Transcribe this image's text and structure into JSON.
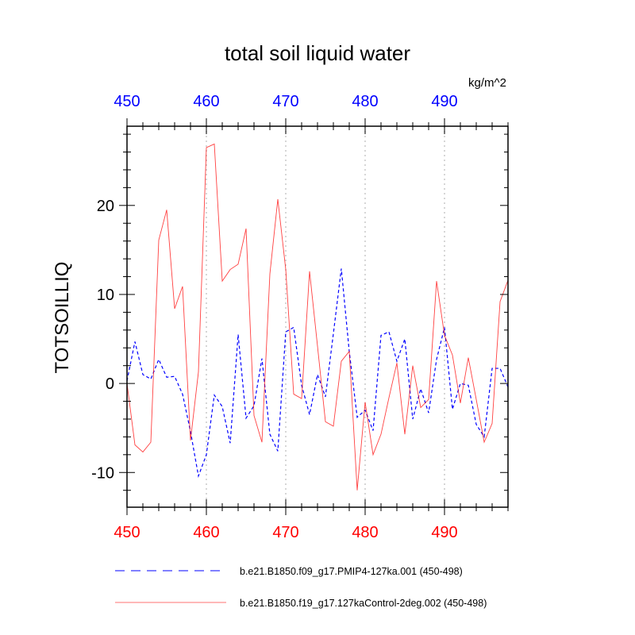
{
  "chart_data": {
    "type": "line",
    "title": "total soil liquid water",
    "ylabel": "TOTSOILLIQ",
    "units": "kg/m^2",
    "xlim": [
      450,
      498
    ],
    "ylim": [
      -13.9,
      28.9
    ],
    "x_ticks": [
      450,
      460,
      470,
      480,
      490
    ],
    "y_ticks": [
      -10,
      0,
      10,
      20
    ],
    "grid": "vertical dotted at major x ticks",
    "top_axis_color": "#0000ff",
    "bottom_axis_color": "#ff0000",
    "legend_placement": "bottom",
    "x": [
      450,
      451,
      452,
      453,
      454,
      455,
      456,
      457,
      458,
      459,
      460,
      461,
      462,
      463,
      464,
      465,
      466,
      467,
      468,
      469,
      470,
      471,
      472,
      473,
      474,
      475,
      476,
      477,
      478,
      479,
      480,
      481,
      482,
      483,
      484,
      485,
      486,
      487,
      488,
      489,
      490,
      491,
      492,
      493,
      494,
      495,
      496,
      497,
      498
    ],
    "series": [
      {
        "name": "b.e21.B1850.f09_g17.PMIP4-127ka.001 (450-498)",
        "color": "#0000ff",
        "dash": "dashed",
        "values": [
          0.3,
          4.7,
          1.0,
          0.5,
          2.7,
          0.7,
          0.8,
          -1.2,
          -5.4,
          -10.4,
          -8.0,
          -1.3,
          -2.6,
          -6.7,
          5.5,
          -3.9,
          -2.5,
          2.8,
          -5.7,
          -7.6,
          5.8,
          6.3,
          -0.2,
          -3.5,
          1.0,
          -1.5,
          5.6,
          12.9,
          3.6,
          -3.8,
          -3.0,
          -5.3,
          5.4,
          5.8,
          2.5,
          5.0,
          -4.0,
          -0.6,
          -3.3,
          2.7,
          6.3,
          -2.9,
          0.0,
          -0.2,
          -4.6,
          -6.0,
          1.7,
          1.7,
          -0.4
        ]
      },
      {
        "name": "b.e21.B1850.f19_g17.127kaControl-2deg.002 (450-498)",
        "color": "#ff0000",
        "dash": "solid",
        "values": [
          0.0,
          -6.9,
          -7.7,
          -6.6,
          16.1,
          19.5,
          8.4,
          10.9,
          -6.4,
          1.3,
          26.5,
          26.9,
          11.5,
          12.8,
          13.4,
          17.4,
          -3.6,
          -6.6,
          12.3,
          20.7,
          12.8,
          -1.2,
          -1.7,
          12.6,
          4.2,
          -4.3,
          -4.8,
          2.5,
          3.6,
          -12.0,
          -2.1,
          -8.0,
          -5.7,
          -1.6,
          2.3,
          -5.7,
          2.0,
          -2.7,
          -1.8,
          11.5,
          5.4,
          3.2,
          -2.2,
          2.9,
          -1.8,
          -6.6,
          -4.5,
          9.2,
          11.6
        ]
      }
    ]
  }
}
